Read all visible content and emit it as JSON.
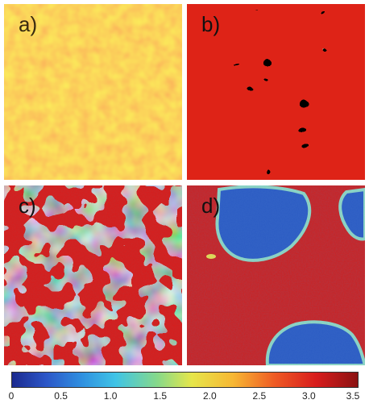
{
  "panels": [
    {
      "label": "a)"
    },
    {
      "label": "b)"
    },
    {
      "label": "c)"
    },
    {
      "label": "d)"
    }
  ],
  "colorbar": {
    "ticks": [
      "0",
      "0.5",
      "1.0",
      "1.5",
      "2.0",
      "2.5",
      "3.0",
      "3.5"
    ],
    "range": [
      0,
      3.5
    ],
    "colors": [
      "#1b2a8f",
      "#2c57c8",
      "#2f8fe0",
      "#3fc4e6",
      "#86d98a",
      "#e6e64a",
      "#f7b733",
      "#ee5a24",
      "#d81c1c",
      "#8b1212"
    ]
  }
}
